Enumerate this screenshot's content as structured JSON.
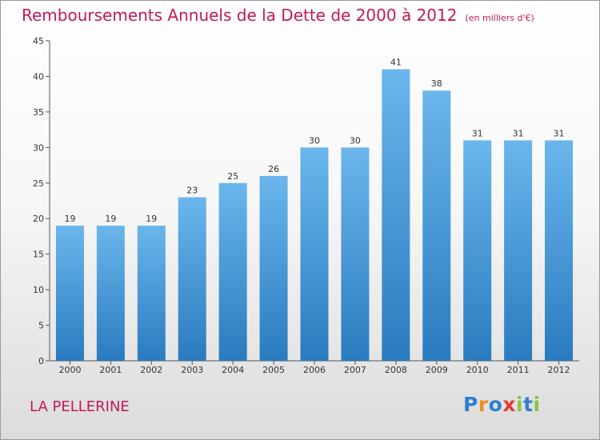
{
  "title": "Remboursements Annuels de la Dette de 2000 à 2012",
  "subtitle": "(en milliers d'€)",
  "commune": "LA PELLERINE",
  "brand": {
    "letters": [
      "P",
      "r",
      "o",
      "x",
      "i",
      "t",
      "i"
    ],
    "colors": [
      "#2f7fd0",
      "#f08a1c",
      "#2f7fd0",
      "#e53935",
      "#8bc34a",
      "#2f7fd0",
      "#8bc34a"
    ]
  },
  "colors": {
    "bar_light": "#6ab6ec",
    "bar_dark": "#2a7bbf",
    "title": "#c2185b"
  },
  "chart_data": {
    "type": "bar",
    "title": "Remboursements Annuels de la Dette de 2000 à 2012",
    "subtitle": "(en milliers d'€)",
    "categories": [
      "2000",
      "2001",
      "2002",
      "2003",
      "2004",
      "2005",
      "2006",
      "2007",
      "2008",
      "2009",
      "2010",
      "2011",
      "2012"
    ],
    "values": [
      19,
      19,
      19,
      23,
      25,
      26,
      30,
      30,
      41,
      38,
      31,
      31,
      31
    ],
    "ylim": [
      0,
      45
    ],
    "yticks": [
      0,
      5,
      10,
      15,
      20,
      25,
      30,
      35,
      40,
      45
    ],
    "grid": false,
    "data_labels": true
  }
}
